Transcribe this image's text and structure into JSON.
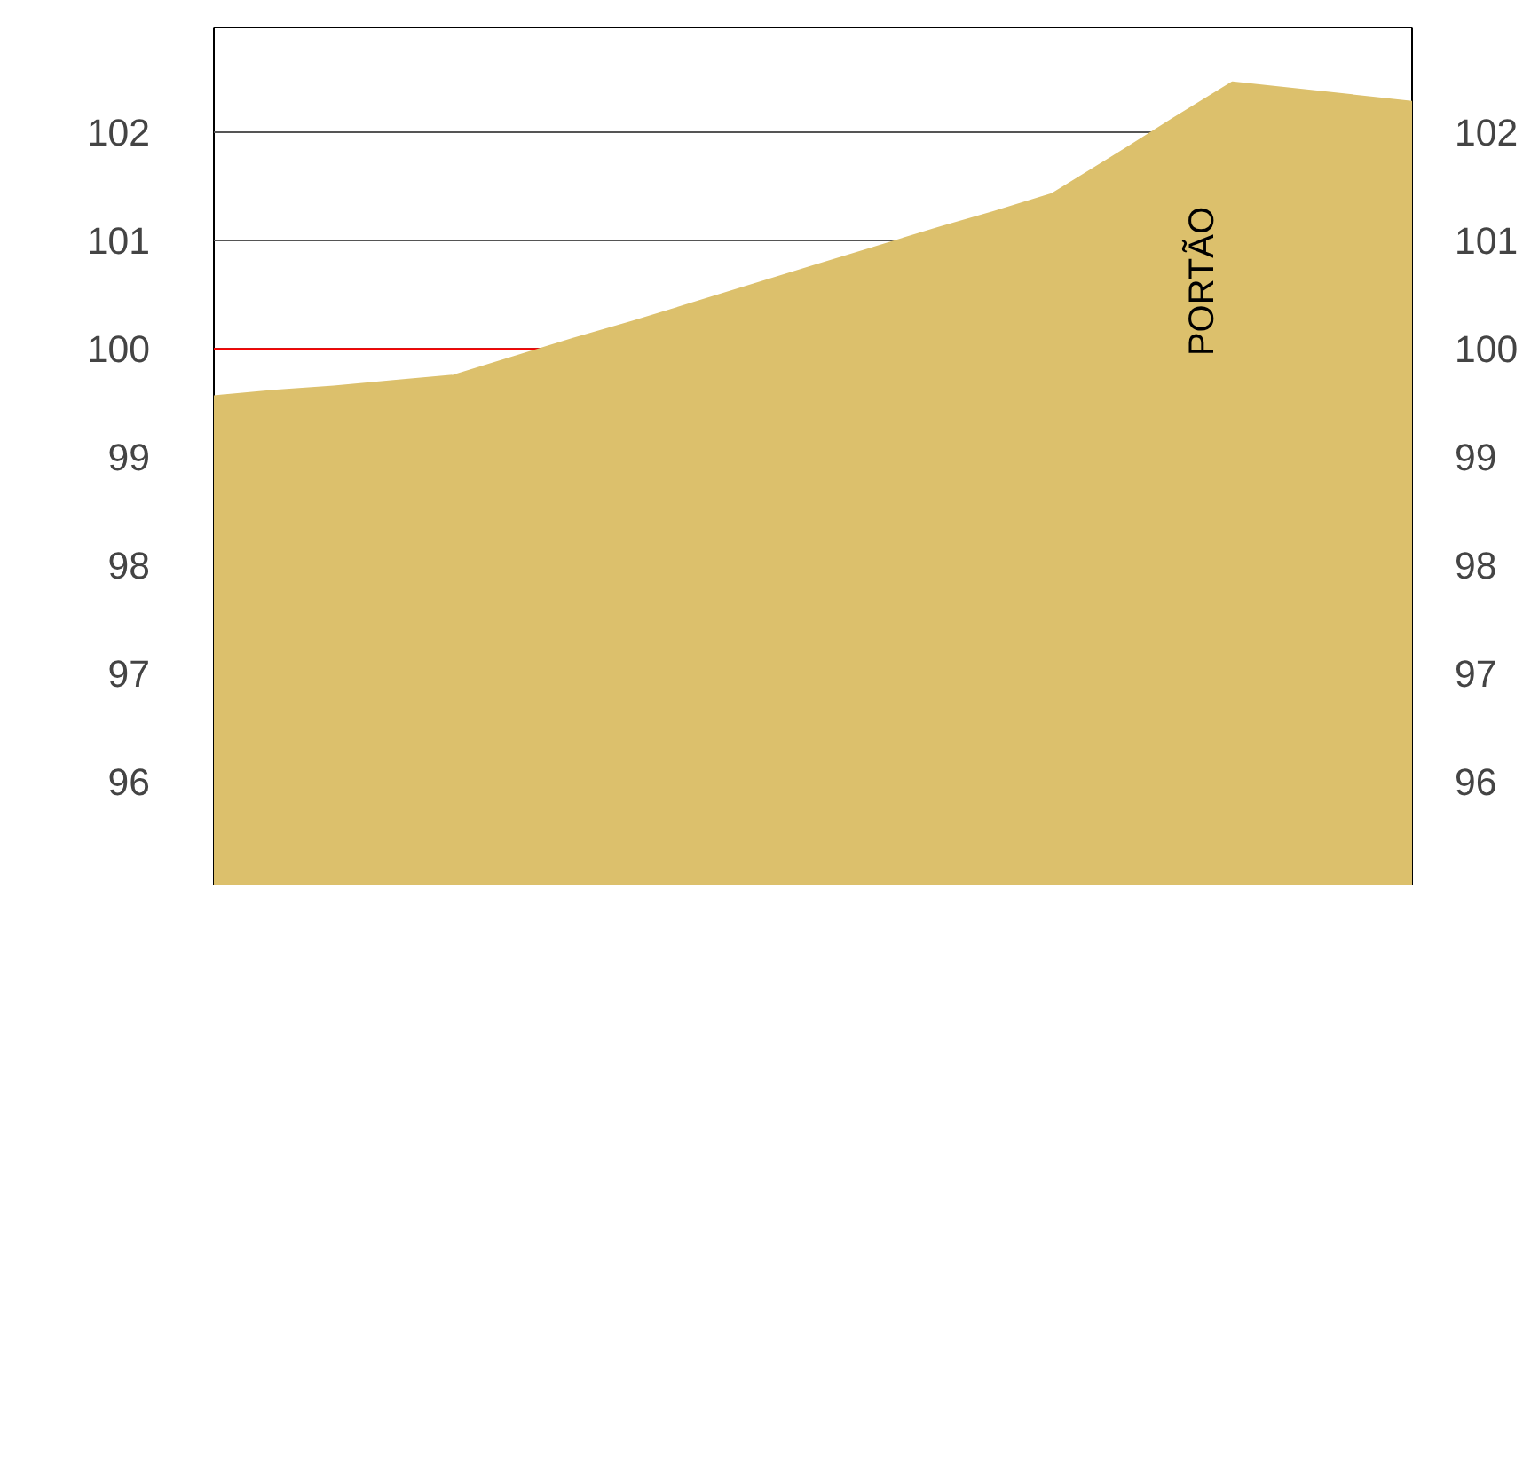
{
  "chart_data": {
    "type": "area",
    "categories": [
      null,
      null,
      null,
      null,
      null,
      null,
      null,
      null,
      null,
      null,
      null,
      null,
      null,
      null,
      null,
      null,
      null,
      null,
      null,
      null,
      null
    ],
    "series": [
      {
        "color": "#dcc06c",
        "values": [
          99.56,
          99.61,
          99.65,
          99.7,
          99.75,
          99.92,
          100.09,
          100.25,
          100.42,
          100.59,
          100.76,
          100.93,
          101.1,
          101.26,
          101.43,
          101.77,
          102.12,
          102.46,
          102.4,
          102.34,
          102.28
        ]
      }
    ],
    "ylim": [
      95.05,
      102.97
    ],
    "yticks": [
      96,
      97,
      98,
      99,
      100,
      101,
      102
    ],
    "y2lim": [
      95.05,
      102.97
    ],
    "y2ticks": [
      96,
      97,
      98,
      99,
      100,
      101,
      102
    ],
    "tick_labels": "y",
    "grid": "y",
    "ref_lines": [
      {
        "axis": "y",
        "value": 100,
        "color": "#ff0000"
      }
    ],
    "annotations": [
      "PORTÃO"
    ]
  }
}
